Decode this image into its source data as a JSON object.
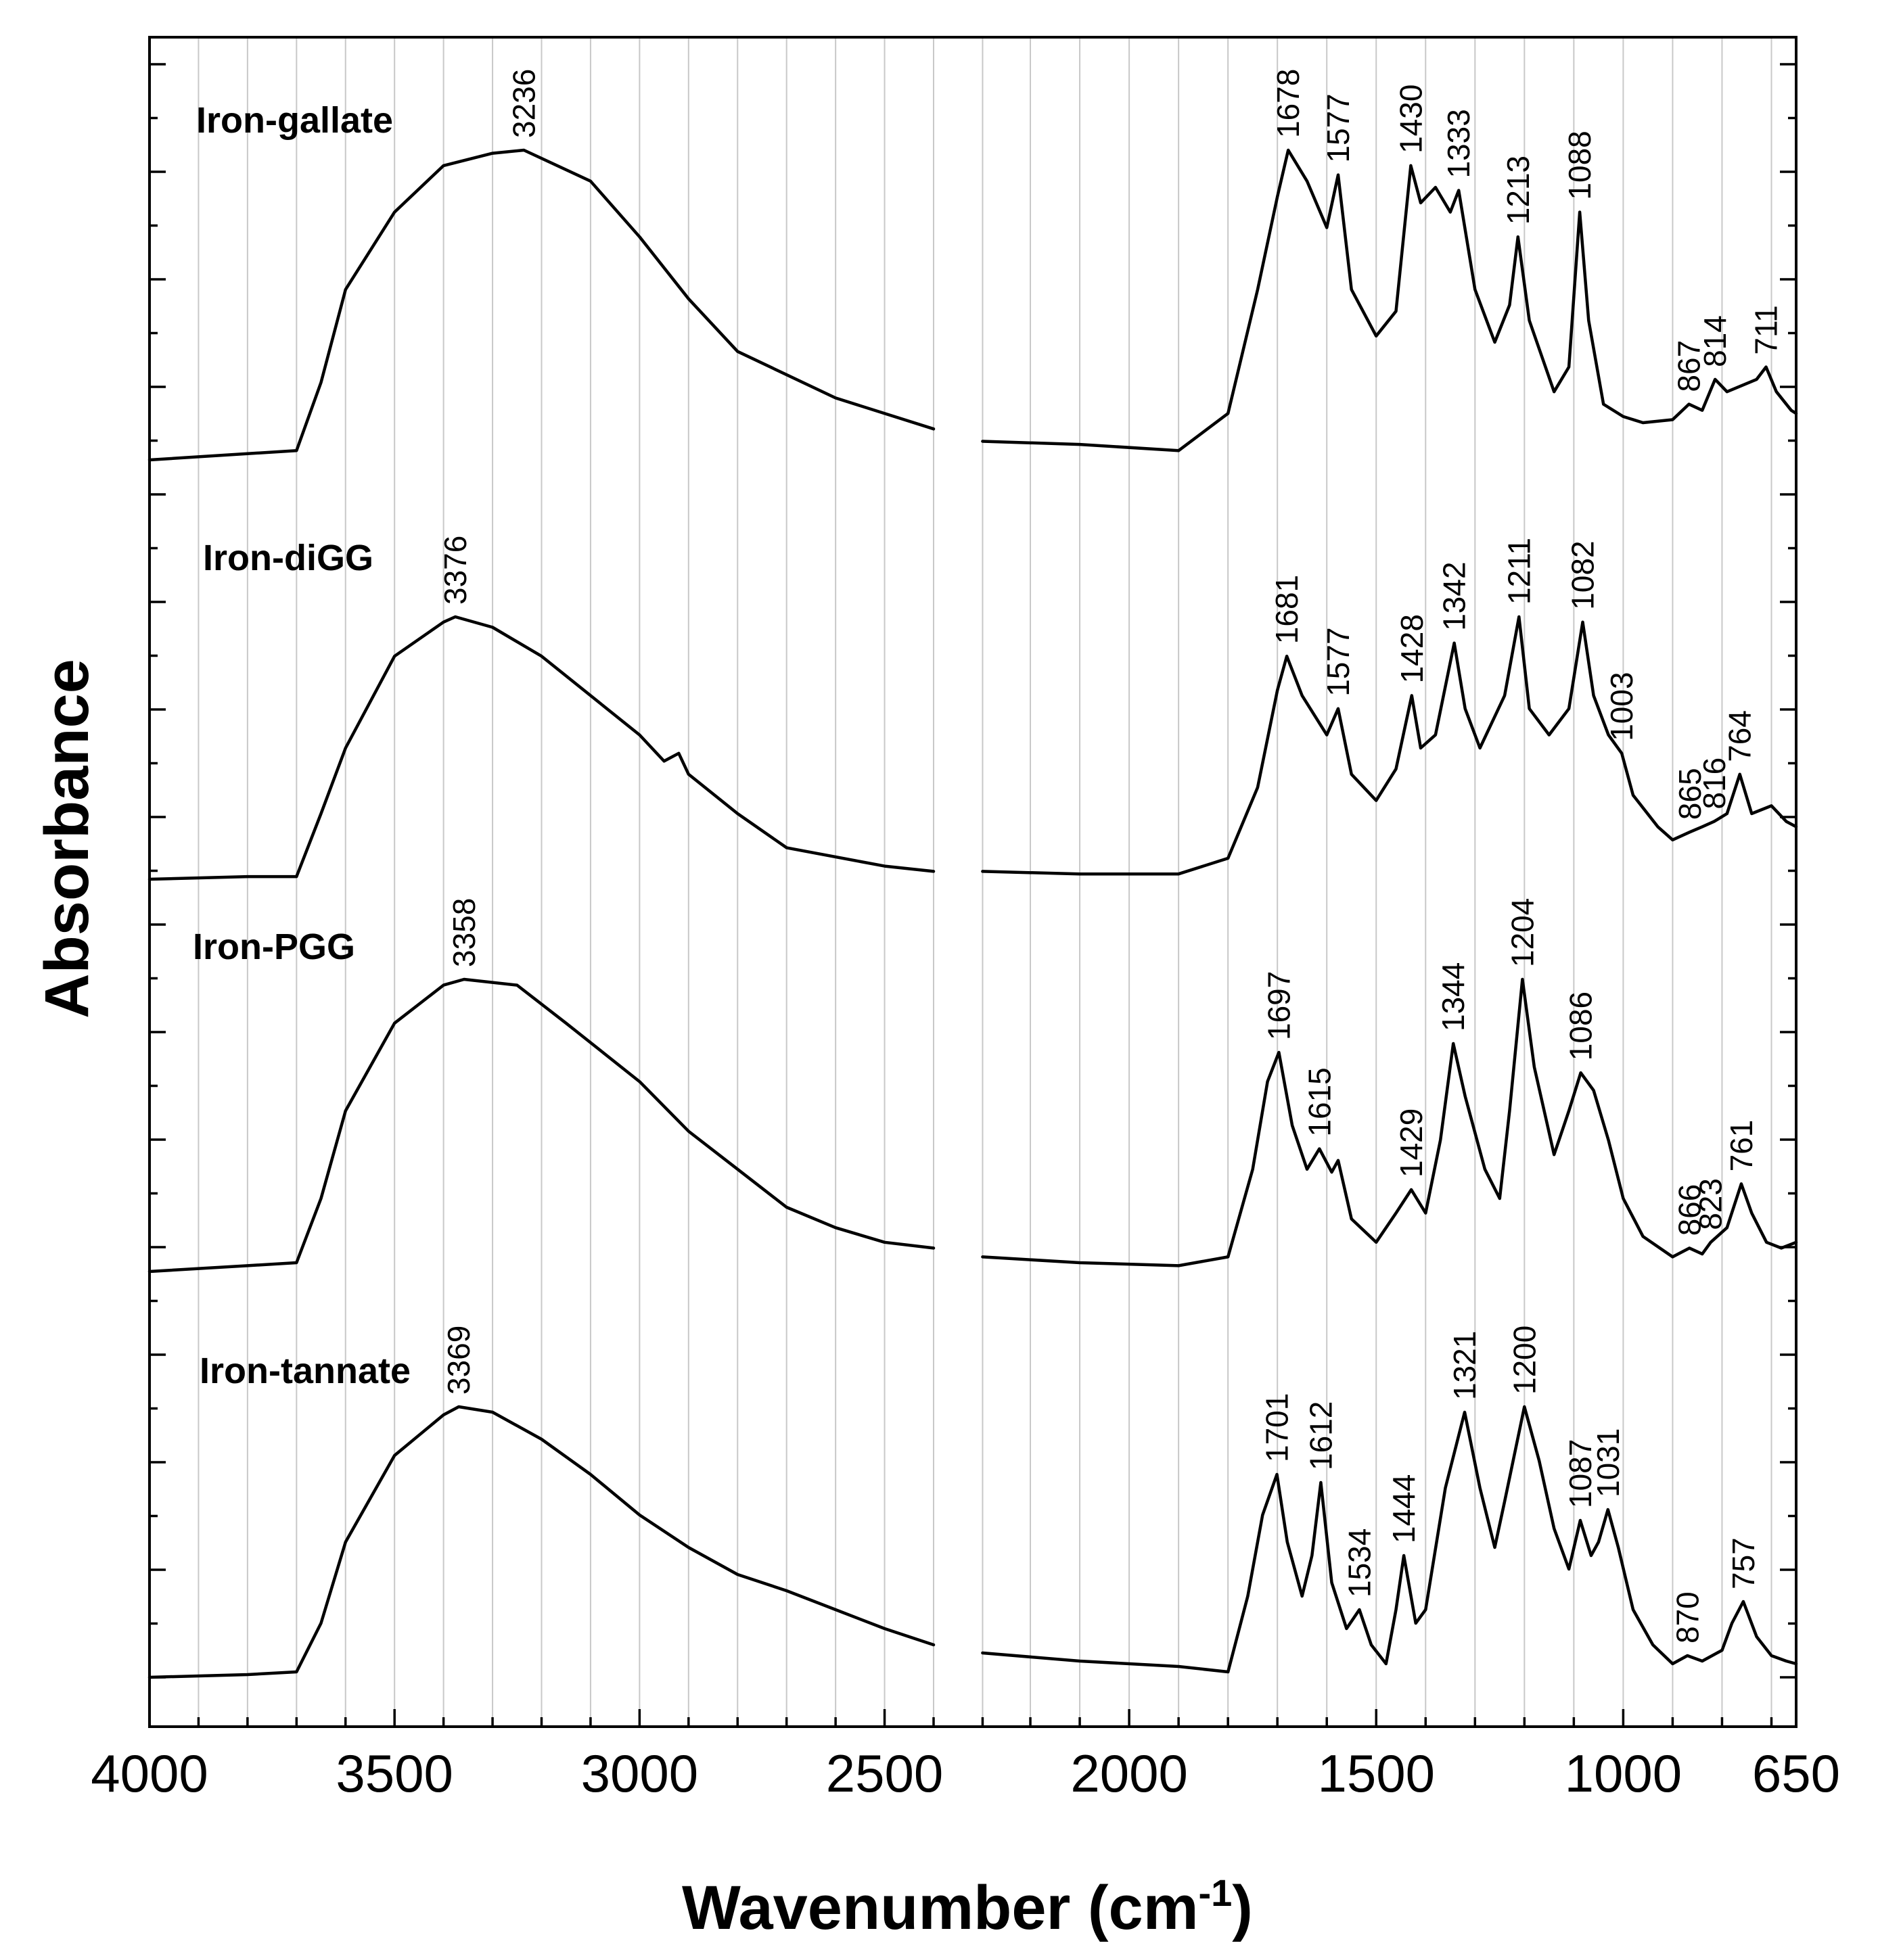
{
  "chart_data": {
    "type": "line",
    "title": "",
    "xlabel": "Wavenumber (cm",
    "xlabel_sup": "-1",
    "xlabel_close": ")",
    "ylabel": "Absorbance",
    "x_axis_reversed": true,
    "x_tick_labels": [
      "4000",
      "3500",
      "3000",
      "2500",
      "2000",
      "1500",
      "1000",
      "650"
    ],
    "x_break": [
      2400,
      2300
    ],
    "grid": true,
    "series": [
      {
        "name": "Iron-gallate",
        "peaks": [
          "3236",
          "1678",
          "1577",
          "1430",
          "1333",
          "1213",
          "1088",
          "867",
          "814",
          "711"
        ],
        "points": [
          [
            4000,
            0.0
          ],
          [
            3800,
            0.02
          ],
          [
            3700,
            0.03
          ],
          [
            3650,
            0.25
          ],
          [
            3600,
            0.55
          ],
          [
            3500,
            0.8
          ],
          [
            3400,
            0.95
          ],
          [
            3300,
            0.99
          ],
          [
            3236,
            1.0
          ],
          [
            3100,
            0.9
          ],
          [
            3000,
            0.72
          ],
          [
            2900,
            0.52
          ],
          [
            2800,
            0.35
          ],
          [
            2600,
            0.2
          ],
          [
            2400,
            0.1
          ],
          [
            2300,
            0.06
          ],
          [
            2100,
            0.05
          ],
          [
            1900,
            0.03
          ],
          [
            1800,
            0.15
          ],
          [
            1740,
            0.55
          ],
          [
            1700,
            0.85
          ],
          [
            1678,
            1.0
          ],
          [
            1640,
            0.9
          ],
          [
            1600,
            0.75
          ],
          [
            1577,
            0.92
          ],
          [
            1550,
            0.55
          ],
          [
            1500,
            0.4
          ],
          [
            1460,
            0.48
          ],
          [
            1430,
            0.95
          ],
          [
            1410,
            0.83
          ],
          [
            1380,
            0.88
          ],
          [
            1350,
            0.8
          ],
          [
            1333,
            0.87
          ],
          [
            1300,
            0.55
          ],
          [
            1260,
            0.38
          ],
          [
            1230,
            0.5
          ],
          [
            1213,
            0.72
          ],
          [
            1190,
            0.45
          ],
          [
            1140,
            0.22
          ],
          [
            1110,
            0.3
          ],
          [
            1088,
            0.8
          ],
          [
            1070,
            0.45
          ],
          [
            1040,
            0.18
          ],
          [
            1000,
            0.14
          ],
          [
            960,
            0.12
          ],
          [
            900,
            0.13
          ],
          [
            867,
            0.18
          ],
          [
            840,
            0.16
          ],
          [
            814,
            0.26
          ],
          [
            790,
            0.22
          ],
          [
            760,
            0.24
          ],
          [
            730,
            0.26
          ],
          [
            711,
            0.3
          ],
          [
            690,
            0.22
          ],
          [
            660,
            0.16
          ],
          [
            650,
            0.15
          ]
        ]
      },
      {
        "name": "Iron-diGG",
        "peaks": [
          "3376",
          "1681",
          "1577",
          "1428",
          "1342",
          "1211",
          "1082",
          "1003",
          "865",
          "816",
          "764"
        ],
        "points": [
          [
            4000,
            0.0
          ],
          [
            3800,
            0.01
          ],
          [
            3700,
            0.01
          ],
          [
            3650,
            0.25
          ],
          [
            3600,
            0.5
          ],
          [
            3500,
            0.85
          ],
          [
            3400,
            0.98
          ],
          [
            3376,
            1.0
          ],
          [
            3300,
            0.96
          ],
          [
            3200,
            0.85
          ],
          [
            3100,
            0.7
          ],
          [
            3000,
            0.55
          ],
          [
            2950,
            0.45
          ],
          [
            2920,
            0.48
          ],
          [
            2900,
            0.4
          ],
          [
            2800,
            0.25
          ],
          [
            2700,
            0.12
          ],
          [
            2500,
            0.05
          ],
          [
            2400,
            0.03
          ],
          [
            2300,
            0.03
          ],
          [
            2100,
            0.02
          ],
          [
            1900,
            0.02
          ],
          [
            1800,
            0.08
          ],
          [
            1740,
            0.35
          ],
          [
            1700,
            0.72
          ],
          [
            1681,
            0.85
          ],
          [
            1650,
            0.7
          ],
          [
            1600,
            0.55
          ],
          [
            1577,
            0.65
          ],
          [
            1550,
            0.4
          ],
          [
            1500,
            0.3
          ],
          [
            1460,
            0.42
          ],
          [
            1428,
            0.7
          ],
          [
            1410,
            0.5
          ],
          [
            1380,
            0.55
          ],
          [
            1342,
            0.9
          ],
          [
            1320,
            0.65
          ],
          [
            1290,
            0.5
          ],
          [
            1260,
            0.62
          ],
          [
            1240,
            0.7
          ],
          [
            1211,
            1.0
          ],
          [
            1190,
            0.65
          ],
          [
            1150,
            0.55
          ],
          [
            1110,
            0.65
          ],
          [
            1082,
            0.98
          ],
          [
            1060,
            0.7
          ],
          [
            1030,
            0.55
          ],
          [
            1003,
            0.48
          ],
          [
            980,
            0.32
          ],
          [
            930,
            0.2
          ],
          [
            900,
            0.15
          ],
          [
            865,
            0.18
          ],
          [
            840,
            0.2
          ],
          [
            816,
            0.22
          ],
          [
            790,
            0.25
          ],
          [
            764,
            0.4
          ],
          [
            740,
            0.25
          ],
          [
            700,
            0.28
          ],
          [
            670,
            0.22
          ],
          [
            650,
            0.2
          ]
        ]
      },
      {
        "name": "Iron-PGG",
        "peaks": [
          "3358",
          "1615",
          "1697",
          "1429",
          "1344",
          "1204",
          "1086",
          "866",
          "823",
          "761"
        ],
        "points": [
          [
            4000,
            0.0
          ],
          [
            3800,
            0.02
          ],
          [
            3700,
            0.03
          ],
          [
            3650,
            0.25
          ],
          [
            3600,
            0.55
          ],
          [
            3500,
            0.85
          ],
          [
            3400,
            0.98
          ],
          [
            3358,
            1.0
          ],
          [
            3250,
            0.98
          ],
          [
            3150,
            0.85
          ],
          [
            3000,
            0.65
          ],
          [
            2900,
            0.48
          ],
          [
            2800,
            0.35
          ],
          [
            2700,
            0.22
          ],
          [
            2600,
            0.15
          ],
          [
            2500,
            0.1
          ],
          [
            2400,
            0.08
          ],
          [
            2300,
            0.05
          ],
          [
            2100,
            0.03
          ],
          [
            1900,
            0.02
          ],
          [
            1800,
            0.05
          ],
          [
            1750,
            0.35
          ],
          [
            1720,
            0.65
          ],
          [
            1697,
            0.75
          ],
          [
            1670,
            0.5
          ],
          [
            1640,
            0.35
          ],
          [
            1615,
            0.42
          ],
          [
            1590,
            0.34
          ],
          [
            1577,
            0.38
          ],
          [
            1550,
            0.18
          ],
          [
            1500,
            0.1
          ],
          [
            1460,
            0.2
          ],
          [
            1429,
            0.28
          ],
          [
            1400,
            0.2
          ],
          [
            1370,
            0.45
          ],
          [
            1344,
            0.78
          ],
          [
            1320,
            0.6
          ],
          [
            1280,
            0.35
          ],
          [
            1250,
            0.25
          ],
          [
            1230,
            0.55
          ],
          [
            1204,
            1.0
          ],
          [
            1180,
            0.7
          ],
          [
            1140,
            0.4
          ],
          [
            1110,
            0.55
          ],
          [
            1086,
            0.68
          ],
          [
            1060,
            0.62
          ],
          [
            1030,
            0.45
          ],
          [
            1000,
            0.25
          ],
          [
            960,
            0.12
          ],
          [
            900,
            0.05
          ],
          [
            866,
            0.08
          ],
          [
            840,
            0.06
          ],
          [
            823,
            0.1
          ],
          [
            790,
            0.15
          ],
          [
            761,
            0.3
          ],
          [
            740,
            0.2
          ],
          [
            710,
            0.1
          ],
          [
            680,
            0.08
          ],
          [
            650,
            0.1
          ]
        ]
      },
      {
        "name": "Iron-tannate",
        "peaks": [
          "3369",
          "1701",
          "1612",
          "1534",
          "1444",
          "1321",
          "1200",
          "1087",
          "1031",
          "870",
          "757"
        ],
        "points": [
          [
            4000,
            0.0
          ],
          [
            3800,
            0.01
          ],
          [
            3700,
            0.02
          ],
          [
            3650,
            0.2
          ],
          [
            3600,
            0.5
          ],
          [
            3500,
            0.82
          ],
          [
            3400,
            0.97
          ],
          [
            3369,
            1.0
          ],
          [
            3300,
            0.98
          ],
          [
            3200,
            0.88
          ],
          [
            3100,
            0.75
          ],
          [
            3000,
            0.6
          ],
          [
            2900,
            0.48
          ],
          [
            2800,
            0.38
          ],
          [
            2700,
            0.32
          ],
          [
            2600,
            0.25
          ],
          [
            2500,
            0.18
          ],
          [
            2400,
            0.12
          ],
          [
            2300,
            0.09
          ],
          [
            2100,
            0.06
          ],
          [
            1900,
            0.04
          ],
          [
            1800,
            0.02
          ],
          [
            1760,
            0.3
          ],
          [
            1730,
            0.6
          ],
          [
            1701,
            0.75
          ],
          [
            1680,
            0.5
          ],
          [
            1650,
            0.3
          ],
          [
            1630,
            0.45
          ],
          [
            1612,
            0.72
          ],
          [
            1590,
            0.35
          ],
          [
            1560,
            0.18
          ],
          [
            1534,
            0.25
          ],
          [
            1510,
            0.12
          ],
          [
            1480,
            0.05
          ],
          [
            1460,
            0.25
          ],
          [
            1444,
            0.45
          ],
          [
            1420,
            0.2
          ],
          [
            1400,
            0.25
          ],
          [
            1360,
            0.7
          ],
          [
            1321,
            0.98
          ],
          [
            1290,
            0.7
          ],
          [
            1260,
            0.48
          ],
          [
            1240,
            0.65
          ],
          [
            1200,
            1.0
          ],
          [
            1170,
            0.8
          ],
          [
            1140,
            0.55
          ],
          [
            1110,
            0.4
          ],
          [
            1087,
            0.58
          ],
          [
            1065,
            0.45
          ],
          [
            1050,
            0.5
          ],
          [
            1031,
            0.62
          ],
          [
            1010,
            0.48
          ],
          [
            980,
            0.25
          ],
          [
            940,
            0.12
          ],
          [
            900,
            0.05
          ],
          [
            870,
            0.08
          ],
          [
            840,
            0.06
          ],
          [
            800,
            0.1
          ],
          [
            780,
            0.2
          ],
          [
            757,
            0.28
          ],
          [
            730,
            0.15
          ],
          [
            700,
            0.08
          ],
          [
            670,
            0.06
          ],
          [
            650,
            0.05
          ]
        ]
      }
    ]
  }
}
